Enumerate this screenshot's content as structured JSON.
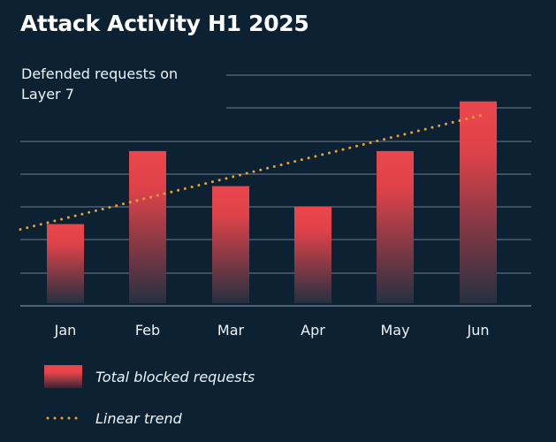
{
  "title": "Attack Activity H1 2025",
  "chart_data": {
    "type": "bar",
    "title": "Attack Activity H1 2025",
    "ylabel": "Defended requests on Layer 7",
    "xlabel": "",
    "categories": [
      "Jan",
      "Feb",
      "Mar",
      "Apr",
      "May",
      "Jun"
    ],
    "series": [
      {
        "name": "Total blocked requests",
        "type": "bar",
        "values": [
          2.4,
          4.9,
          3.7,
          3.0,
          4.9,
          6.6
        ]
      },
      {
        "name": "Linear trend",
        "type": "line",
        "style": "dotted",
        "values": [
          2.6,
          3.4,
          4.1,
          4.8,
          5.5,
          6.1
        ]
      }
    ],
    "ylim": [
      -0.4,
      7.5
    ],
    "grid": true,
    "legend_position": "bottom-left",
    "colors": {
      "bar": "#e9454b",
      "trend": "#f0a030",
      "grid": "#6b7d8b",
      "background": "#0c2233"
    }
  },
  "legend": {
    "bar_label": "Total blocked requests",
    "trend_label": "Linear trend"
  }
}
